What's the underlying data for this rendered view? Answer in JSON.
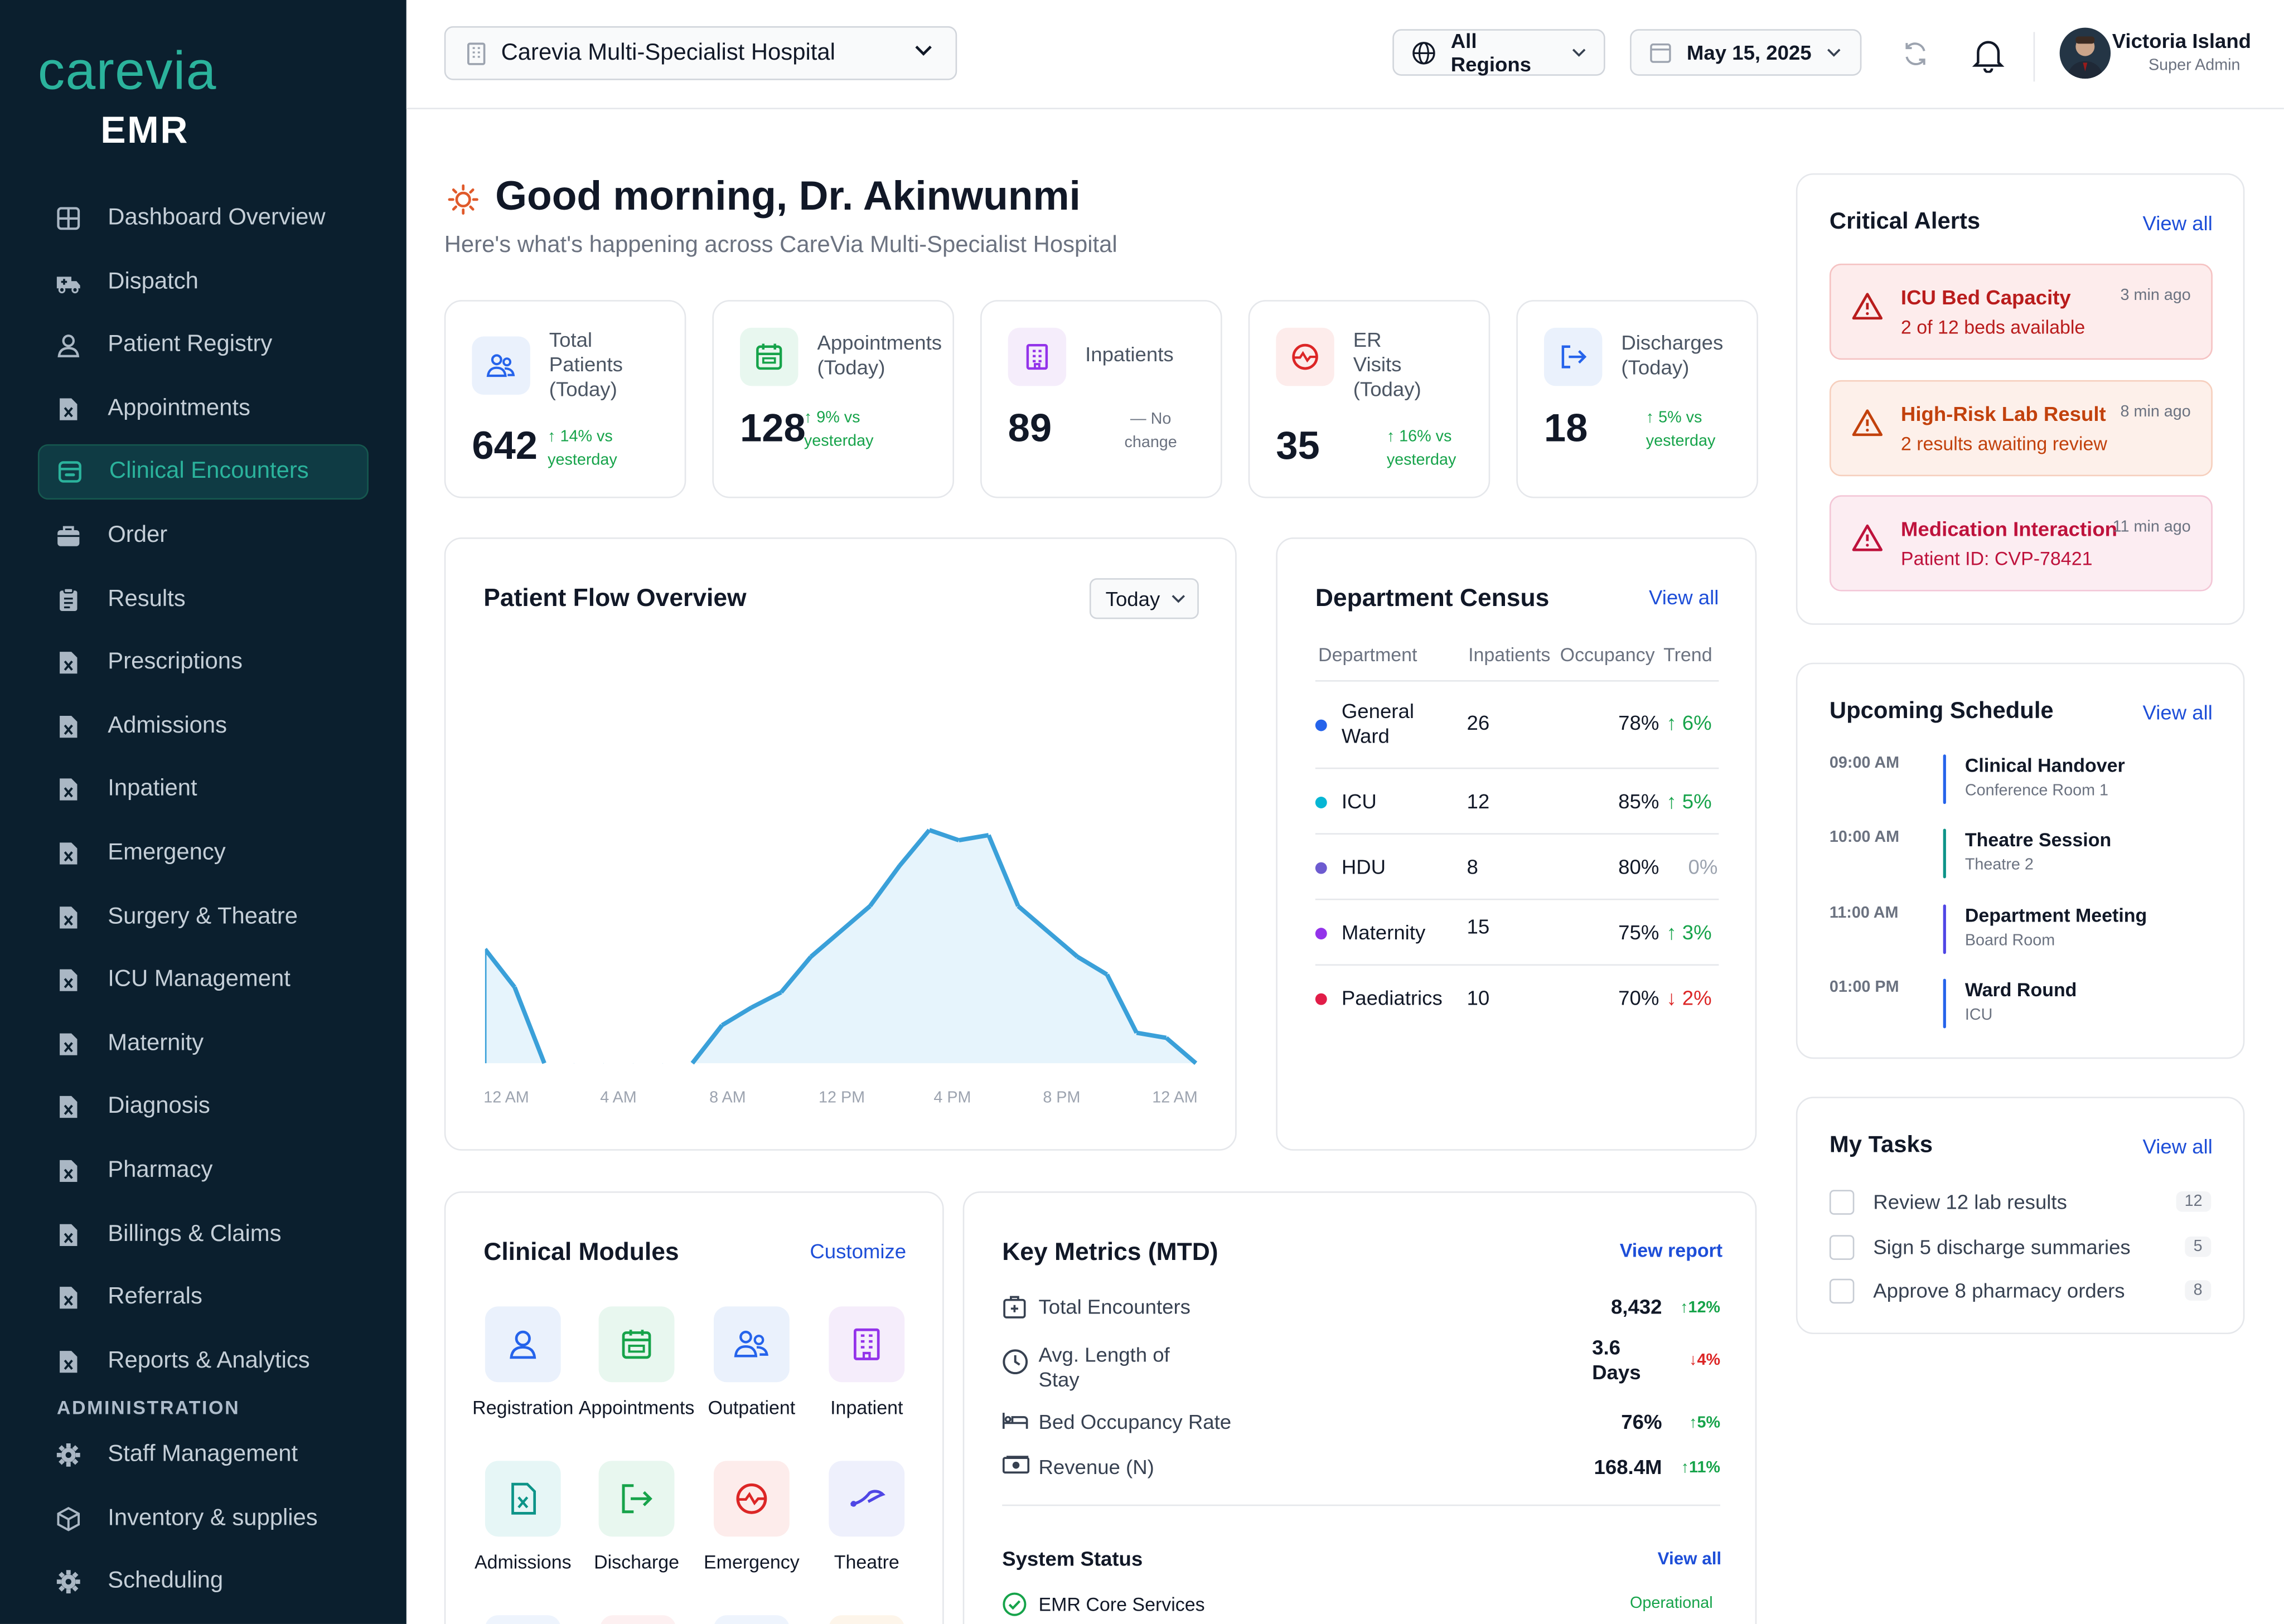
{
  "app": {
    "logo_word": "carevia",
    "logo_sub": "EMR"
  },
  "sidebar": {
    "items": [
      {
        "label": "Dashboard Overview",
        "icon": "grid-icon"
      },
      {
        "label": "Dispatch",
        "icon": "ambulance-icon"
      },
      {
        "label": "Patient Registry",
        "icon": "user-icon"
      },
      {
        "label": "Appointments",
        "icon": "document-icon"
      },
      {
        "label": "Clinical Encounters",
        "icon": "encounter-icon",
        "active": true
      },
      {
        "label": "Order",
        "icon": "briefcase-icon"
      },
      {
        "label": "Results",
        "icon": "clipboard-icon"
      },
      {
        "label": "Prescriptions",
        "icon": "document-icon"
      },
      {
        "label": "Admissions",
        "icon": "document-icon"
      },
      {
        "label": "Inpatient",
        "icon": "document-icon"
      },
      {
        "label": "Emergency",
        "icon": "document-icon"
      },
      {
        "label": "Surgery & Theatre",
        "icon": "document-icon"
      },
      {
        "label": "ICU Management",
        "icon": "document-icon"
      },
      {
        "label": "Maternity",
        "icon": "document-icon"
      },
      {
        "label": "Diagnosis",
        "icon": "document-icon"
      },
      {
        "label": "Pharmacy",
        "icon": "document-icon"
      },
      {
        "label": "Billings & Claims",
        "icon": "document-icon"
      },
      {
        "label": "Referrals",
        "icon": "document-icon"
      },
      {
        "label": "Reports & Analytics",
        "icon": "document-icon"
      }
    ],
    "admin_section": "ADMINISTRATION",
    "admin_items": [
      {
        "label": "Staff Management",
        "icon": "gear-icon"
      },
      {
        "label": "Inventory & supplies",
        "icon": "cube-icon"
      },
      {
        "label": "Scheduling",
        "icon": "gear-icon"
      }
    ]
  },
  "topbar": {
    "hospital": "Carevia Multi-Specialist Hospital",
    "region": "All Regions",
    "date": "May 15, 2025",
    "user_name": "Victoria Island",
    "user_role": "Super Admin"
  },
  "greeting": {
    "title": "Good morning, Dr. Akinwunmi",
    "subtitle": "Here's what's happening across CareVia Multi-Specialist Hospital"
  },
  "stats": [
    {
      "label": "Total Patients (Today)",
      "value": "642",
      "delta": "↑ 14% vs yesterday",
      "color": "#16a34a"
    },
    {
      "label": "Appointments (Today)",
      "value": "128",
      "delta": "↑ 9% vs yesterday",
      "color": "#16a34a"
    },
    {
      "label": "Inpatients",
      "value": "89",
      "delta": "— No change",
      "color": "#6b7280"
    },
    {
      "label": "ER Visits (Today)",
      "value": "35",
      "delta": "↑ 16% vs yesterday",
      "color": "#16a34a"
    },
    {
      "label": "Discharges (Today)",
      "value": "18",
      "delta": "↑ 5% vs yesterday",
      "color": "#16a34a"
    }
  ],
  "patient_flow": {
    "title": "Patient Flow Overview",
    "range": "Today",
    "x_ticks": [
      "12 AM",
      "4 AM",
      "8 AM",
      "12 PM",
      "4 PM",
      "8 PM",
      "12 AM"
    ]
  },
  "chart_data": {
    "type": "area",
    "title": "Patient Flow Overview",
    "x": [
      "12 AM",
      "1 AM",
      "2 AM",
      "3 AM",
      "4 AM",
      "5 AM",
      "6 AM",
      "7 AM",
      "8 AM",
      "9 AM",
      "10 AM",
      "11 AM",
      "12 PM",
      "1 PM",
      "2 PM",
      "3 PM",
      "4 PM",
      "5 PM",
      "6 PM",
      "7 PM",
      "8 PM",
      "9 PM",
      "10 PM",
      "11 PM",
      "12 AM"
    ],
    "values": [
      45,
      30,
      0,
      0,
      0,
      0,
      0,
      0,
      15,
      22,
      28,
      42,
      52,
      62,
      78,
      92,
      88,
      90,
      62,
      52,
      42,
      35,
      12,
      10,
      0
    ],
    "ylim": [
      0,
      100
    ],
    "color": "#3aa0d9",
    "fill": "#e6f4fc"
  },
  "census": {
    "title": "Department Census",
    "view_all": "View all",
    "headers": [
      "Department",
      "Inpatients",
      "Occupancy",
      "Trend"
    ],
    "rows": [
      {
        "name": "General Ward",
        "inpatients": "26",
        "occupancy": "78%",
        "trend": "↑ 6%",
        "dot": "#2563eb",
        "trend_color": "#16a34a"
      },
      {
        "name": "ICU",
        "inpatients": "12",
        "occupancy": "85%",
        "trend": "↑ 5%",
        "dot": "#06b6d4",
        "trend_color": "#16a34a"
      },
      {
        "name": "HDU",
        "inpatients": "8",
        "occupancy": "80%",
        "trend": "0%",
        "dot": "#6d5bd0",
        "trend_color": "#9ca3af"
      },
      {
        "name": "Maternity",
        "inpatients": "15",
        "occupancy": "75%",
        "trend": "↑ 3%",
        "dot": "#9333ea",
        "trend_color": "#16a34a"
      },
      {
        "name": "Paediatrics",
        "inpatients": "10",
        "occupancy": "70%",
        "trend": "↓ 2%",
        "dot": "#e11d48",
        "trend_color": "#dc2626"
      }
    ]
  },
  "alerts": {
    "title": "Critical Alerts",
    "view_all": "View all",
    "items": [
      {
        "title": "ICU Bed Capacity",
        "sub": "2 of 12 beds available",
        "time": "3 min ago",
        "bg": "#fdecec",
        "border": "#f5c2c2",
        "fg": "#b91c1c"
      },
      {
        "title": "High-Risk Lab Result",
        "sub": "2 results awaiting review",
        "time": "8 min ago",
        "bg": "#fdf0ea",
        "border": "#f6cfbd",
        "fg": "#c2410c"
      },
      {
        "title": "Medication Interaction",
        "sub": "Patient ID: CVP-78421",
        "time": "11 min ago",
        "bg": "#fcedf2",
        "border": "#f3c6d6",
        "fg": "#be123c"
      }
    ]
  },
  "schedule": {
    "title": "Upcoming Schedule",
    "view_all": "View all",
    "items": [
      {
        "time": "09:00 AM",
        "title": "Clinical Handover",
        "place": "Conference Room 1",
        "color": "#2563eb"
      },
      {
        "time": "10:00 AM",
        "title": "Theatre Session",
        "place": "Theatre 2",
        "color": "#0d9488"
      },
      {
        "time": "11:00 AM",
        "title": "Department Meeting",
        "place": "Board Room",
        "color": "#4f46e5"
      },
      {
        "time": "01:00 PM",
        "title": "Ward Round",
        "place": "ICU",
        "color": "#2563eb"
      }
    ]
  },
  "tasks": {
    "title": "My Tasks",
    "view_all": "View all",
    "items": [
      {
        "label": "Review 12 lab results",
        "count": "12"
      },
      {
        "label": "Sign 5 discharge summaries",
        "count": "5"
      },
      {
        "label": "Approve 8 pharmacy orders",
        "count": "8"
      }
    ]
  },
  "modules": {
    "title": "Clinical Modules",
    "customize": "Customize",
    "items": [
      {
        "label": "Registration",
        "icon": "user-icon"
      },
      {
        "label": "Appointments",
        "icon": "calendar-icon"
      },
      {
        "label": "Outpatient",
        "icon": "users-icon"
      },
      {
        "label": "Inpatient",
        "icon": "building-icon"
      },
      {
        "label": "Admissions",
        "icon": "document-icon"
      },
      {
        "label": "Discharge",
        "icon": "exit-icon"
      },
      {
        "label": "Emergency",
        "icon": "emergency-icon"
      },
      {
        "label": "Theatre",
        "icon": "scalpel-icon"
      }
    ]
  },
  "metrics": {
    "title": "Key Metrics (MTD)",
    "view_report": "View report",
    "items": [
      {
        "label": "Total Encounters",
        "value": "8,432",
        "delta": "↑12%",
        "color": "#16a34a",
        "icon": "medical-box-icon"
      },
      {
        "label": "Avg. Length of Stay",
        "value": "3.6 Days",
        "delta": "↓4%",
        "color": "#dc2626",
        "icon": "clock-icon"
      },
      {
        "label": "Bed Occupancy Rate",
        "value": "76%",
        "delta": "↑5%",
        "color": "#16a34a",
        "icon": "bed-icon"
      },
      {
        "label": "Revenue (N)",
        "value": "168.4M",
        "delta": "↑11%",
        "color": "#16a34a",
        "icon": "cash-icon"
      }
    ],
    "system_status_title": "System Status",
    "system_view_all": "View all",
    "service_name": "EMR Core Services",
    "service_status": "Operational"
  }
}
